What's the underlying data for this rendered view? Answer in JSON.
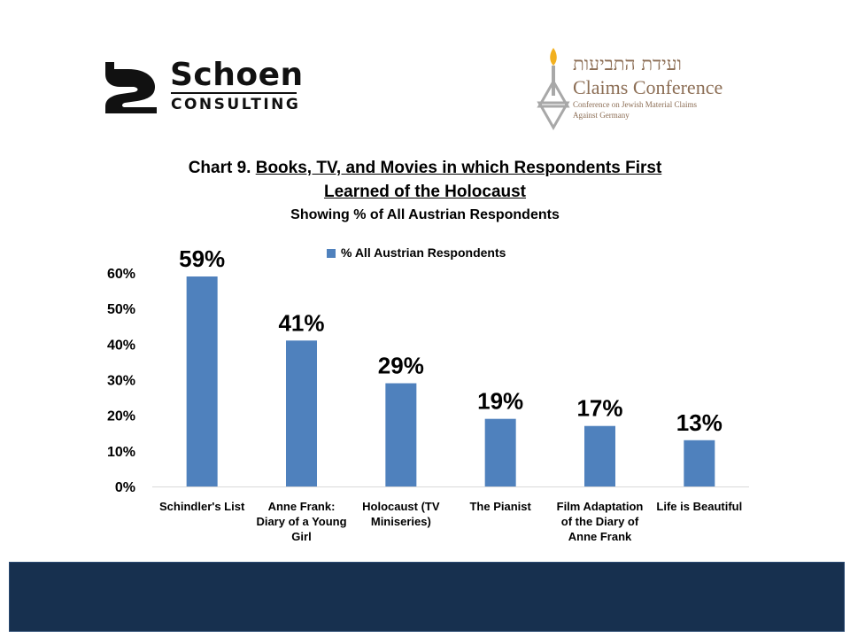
{
  "branding": {
    "left_logo_name": "Schoen",
    "left_logo_sub": "CONSULTING",
    "right_logo_hebrew": "ועידת התביעות",
    "right_logo_name": "Claims Conference",
    "right_logo_sub1": "Conference on Jewish Material Claims",
    "right_logo_sub2": "Against Germany"
  },
  "colors": {
    "bar": "#4f81bd",
    "footer": "#17304f",
    "axis": "#d9d9d9"
  },
  "chart_data": {
    "type": "bar",
    "title_prefix": "Chart 9. ",
    "title_line1": "Books, TV, and Movies in which Respondents First",
    "title_line2": "Learned of the Holocaust",
    "subtitle": "Showing % of All Austrian Respondents",
    "categories": [
      [
        "Schindler's List"
      ],
      [
        "Anne Frank:",
        "Diary of a Young",
        "Girl"
      ],
      [
        "Holocaust   (TV",
        "Miniseries)"
      ],
      [
        "The Pianist"
      ],
      [
        "Film Adaptation",
        "of the Diary of",
        "Anne Frank"
      ],
      [
        "Life is Beautiful"
      ]
    ],
    "series": [
      {
        "name": "% All Austrian Respondents",
        "values": [
          59,
          41,
          29,
          19,
          17,
          13
        ]
      }
    ],
    "data_labels": [
      "59%",
      "41%",
      "29%",
      "19%",
      "17%",
      "13%"
    ],
    "yticks": [
      "0%",
      "10%",
      "20%",
      "30%",
      "40%",
      "50%",
      "60%"
    ],
    "ylim": [
      0,
      60
    ],
    "legend_position": "top-center",
    "grid": false
  }
}
